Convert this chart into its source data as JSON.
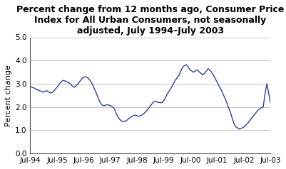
{
  "title": "Percent change from 12 months ago, Consumer Price\nIndex for All Urban Consumers, not seasonally\nadjusted, July 1994–July 2003",
  "ylabel": "Percent change",
  "ylim": [
    0.0,
    5.0
  ],
  "yticks": [
    0.0,
    1.0,
    2.0,
    3.0,
    4.0,
    5.0
  ],
  "xtick_labels": [
    "Jul-94",
    "Jul-95",
    "Jul-96",
    "Jul-97",
    "Jul-98",
    "Jul-99",
    "Jul-00",
    "Jul-01",
    "Jul-02",
    "Jul-03"
  ],
  "line_color": "#2E3F9E",
  "background_color": "#ffffff",
  "grid_color": "#aaaaaa",
  "title_fontsize": 9,
  "axis_fontsize": 8,
  "tick_fontsize": 7.5,
  "values": [
    2.88,
    2.85,
    2.82,
    2.77,
    2.74,
    2.7,
    2.67,
    2.64,
    2.68,
    2.7,
    2.65,
    2.6,
    2.63,
    2.7,
    2.8,
    2.9,
    3.0,
    3.1,
    3.15,
    3.12,
    3.08,
    3.05,
    2.98,
    2.9,
    2.85,
    2.92,
    3.0,
    3.1,
    3.2,
    3.28,
    3.3,
    3.28,
    3.2,
    3.1,
    2.95,
    2.78,
    2.6,
    2.4,
    2.2,
    2.1,
    2.05,
    2.08,
    2.1,
    2.08,
    2.05,
    2.0,
    1.9,
    1.7,
    1.55,
    1.45,
    1.38,
    1.38,
    1.4,
    1.45,
    1.52,
    1.58,
    1.62,
    1.65,
    1.63,
    1.6,
    1.62,
    1.67,
    1.72,
    1.8,
    1.9,
    2.0,
    2.1,
    2.2,
    2.25,
    2.22,
    2.2,
    2.18,
    2.2,
    2.3,
    2.45,
    2.6,
    2.72,
    2.85,
    3.0,
    3.15,
    3.25,
    3.35,
    3.55,
    3.7,
    3.78,
    3.82,
    3.75,
    3.6,
    3.55,
    3.5,
    3.55,
    3.6,
    3.52,
    3.45,
    3.38,
    3.45,
    3.55,
    3.65,
    3.58,
    3.48,
    3.35,
    3.2,
    3.05,
    2.9,
    2.75,
    2.58,
    2.4,
    2.22,
    2.0,
    1.8,
    1.55,
    1.3,
    1.15,
    1.1,
    1.05,
    1.08,
    1.12,
    1.18,
    1.25,
    1.35,
    1.45,
    1.55,
    1.65,
    1.75,
    1.85,
    1.92,
    1.98,
    2.0,
    2.55,
    3.0,
    2.6,
    2.15
  ]
}
